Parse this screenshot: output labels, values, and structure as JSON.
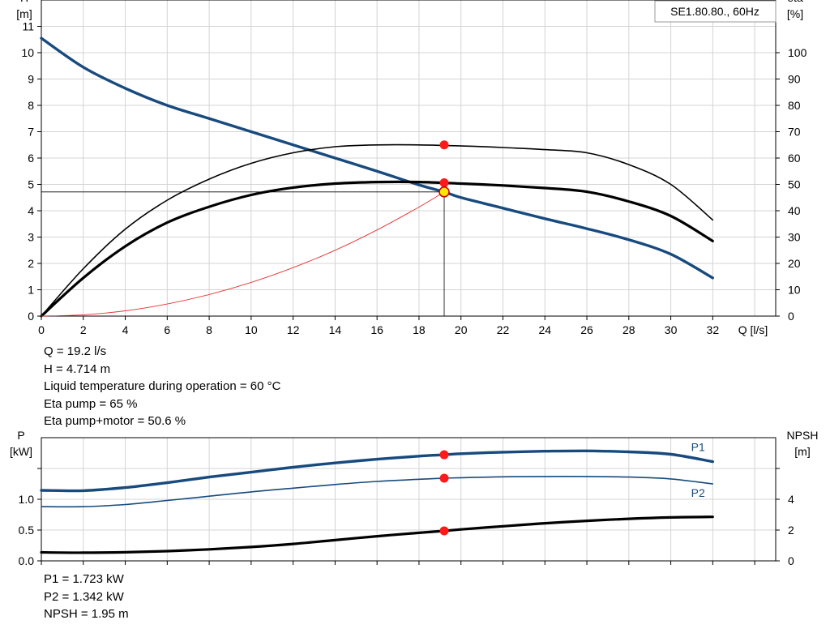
{
  "colors": {
    "head": "#174a7e",
    "power": "#174a7e",
    "efficiency": "#000000",
    "system": "#e83030",
    "point": "#ff1a1a",
    "grid": "#d4d4d4"
  },
  "chart_data": [
    {
      "type": "line",
      "badge": "SE1.80.80., 60Hz",
      "x_axis": {
        "label": "Q [l/s]",
        "range": [
          0,
          35
        ],
        "ticks": [
          0,
          2,
          4,
          6,
          8,
          10,
          12,
          14,
          16,
          18,
          20,
          22,
          24,
          26,
          28,
          30,
          32
        ]
      },
      "y_left": {
        "label": [
          "H",
          "[m]"
        ],
        "range": [
          0,
          12
        ],
        "ticks": [
          0,
          1,
          2,
          3,
          4,
          5,
          6,
          7,
          8,
          9,
          10,
          11
        ]
      },
      "y_right": {
        "label": [
          "eta",
          "[%]"
        ],
        "range": [
          0,
          120
        ],
        "ticks": [
          0,
          10,
          20,
          30,
          40,
          50,
          60,
          70,
          80,
          90,
          100
        ]
      },
      "grid": true,
      "series": [
        {
          "id": "head",
          "axis": "left",
          "style": "blue-thick",
          "x": [
            0,
            2,
            4,
            6,
            8,
            10,
            12,
            14,
            16,
            18,
            19.2,
            20,
            22,
            24,
            26,
            28,
            30,
            32
          ],
          "y": [
            10.55,
            9.45,
            8.65,
            8.0,
            7.5,
            7.0,
            6.5,
            6.0,
            5.5,
            4.98,
            4.714,
            4.5,
            4.1,
            3.7,
            3.32,
            2.9,
            2.35,
            1.45
          ]
        },
        {
          "id": "eta_pump",
          "axis": "right",
          "style": "black-thin",
          "x": [
            0,
            2,
            4,
            6,
            8,
            10,
            12,
            14,
            16,
            18,
            20,
            22,
            24,
            26,
            28,
            30,
            32
          ],
          "y": [
            0,
            18,
            33,
            44,
            52,
            58,
            62,
            64.3,
            65,
            65,
            64.6,
            64,
            63.2,
            62,
            57.5,
            50,
            36.5
          ]
        },
        {
          "id": "eta_pump_motor",
          "axis": "right",
          "style": "black-thick",
          "x": [
            0,
            2,
            4,
            6,
            8,
            10,
            12,
            14,
            16,
            18,
            20,
            22,
            24,
            26,
            28,
            30,
            32
          ],
          "y": [
            0,
            14.5,
            26.5,
            35.5,
            41.5,
            46,
            48.8,
            50.3,
            50.9,
            50.9,
            50.3,
            49.6,
            48.6,
            47.2,
            43.5,
            38,
            28.5
          ]
        },
        {
          "id": "system_curve",
          "axis": "left",
          "style": "red-thin",
          "x": [
            0,
            2,
            4,
            6,
            8,
            10,
            12,
            14,
            16,
            18,
            19.2
          ],
          "y": [
            0,
            0.05,
            0.2,
            0.46,
            0.82,
            1.28,
            1.84,
            2.5,
            3.27,
            4.14,
            4.714
          ]
        }
      ],
      "operating_point": {
        "x": 19.2,
        "head": 4.714,
        "eta_pump": 65,
        "eta_pump_motor": 50.6
      }
    },
    {
      "type": "line",
      "x_axis": {
        "range": [
          0,
          35
        ]
      },
      "y_left": {
        "label": [
          "P",
          "[kW]"
        ],
        "range": [
          0,
          2.0
        ],
        "ticks": [
          0.0,
          0.5,
          1.0
        ],
        "tick_labels": [
          "0.0",
          "0.5",
          "1.0"
        ]
      },
      "y_right": {
        "label": [
          "NPSH",
          "[m]"
        ],
        "range": [
          0,
          8
        ],
        "ticks": [
          0,
          2,
          4
        ],
        "tick_labels": [
          "0",
          "2",
          "4"
        ]
      },
      "grid": true,
      "series": [
        {
          "id": "P1",
          "name": "P1",
          "axis": "left",
          "style": "blue-thick",
          "x": [
            0,
            2,
            4,
            6,
            8,
            10,
            12,
            14,
            16,
            18,
            19.2,
            20,
            22,
            24,
            26,
            28,
            30,
            32
          ],
          "y": [
            1.145,
            1.14,
            1.19,
            1.27,
            1.36,
            1.44,
            1.52,
            1.59,
            1.65,
            1.7,
            1.723,
            1.74,
            1.765,
            1.78,
            1.785,
            1.77,
            1.73,
            1.61
          ]
        },
        {
          "id": "P2",
          "name": "P2",
          "axis": "left",
          "style": "blue-thin",
          "x": [
            0,
            2,
            4,
            6,
            8,
            10,
            12,
            14,
            16,
            18,
            19.2,
            20,
            22,
            24,
            26,
            28,
            30,
            32
          ],
          "y": [
            0.88,
            0.88,
            0.915,
            0.98,
            1.05,
            1.12,
            1.18,
            1.24,
            1.29,
            1.325,
            1.342,
            1.35,
            1.365,
            1.37,
            1.37,
            1.36,
            1.33,
            1.25
          ]
        },
        {
          "id": "NPSH",
          "axis": "right",
          "style": "black-thick",
          "x": [
            0,
            2,
            4,
            6,
            8,
            10,
            12,
            14,
            16,
            18,
            19.2,
            20,
            22,
            24,
            26,
            28,
            30,
            32
          ],
          "y": [
            0.55,
            0.53,
            0.56,
            0.63,
            0.75,
            0.9,
            1.1,
            1.35,
            1.6,
            1.82,
            1.95,
            2.04,
            2.25,
            2.44,
            2.6,
            2.73,
            2.82,
            2.86
          ]
        }
      ],
      "operating_point": {
        "x": 19.2,
        "P1": 1.723,
        "P2": 1.342,
        "NPSH": 1.95
      }
    }
  ],
  "info_top": [
    "Q = 19.2 l/s",
    "H = 4.714 m",
    "Liquid temperature during operation = 60 °C",
    "Eta pump = 65 %",
    "Eta pump+motor = 50.6 %"
  ],
  "info_bottom": [
    "P1 = 1.723 kW",
    "P2 = 1.342 kW",
    "NPSH = 1.95 m"
  ]
}
